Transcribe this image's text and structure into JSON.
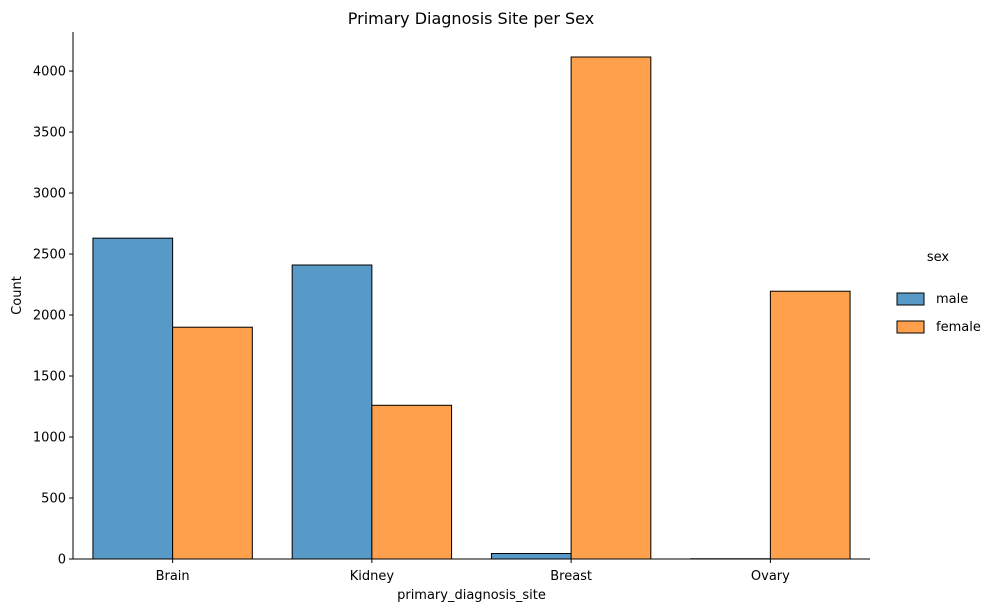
{
  "chart_data": {
    "type": "bar",
    "title": "Primary Diagnosis Site per Sex",
    "xlabel": "primary_diagnosis_site",
    "ylabel": "Count",
    "categories": [
      "Brain",
      "Kidney",
      "Breast",
      "Ovary"
    ],
    "series": [
      {
        "name": "male",
        "values": [
          2630,
          2410,
          45,
          2
        ],
        "color": "#5799c7"
      },
      {
        "name": "female",
        "values": [
          1900,
          1260,
          4115,
          2195
        ],
        "color": "#ffa04d"
      }
    ],
    "ylim": [
      0,
      4320
    ],
    "yticks": [
      0,
      500,
      1000,
      1500,
      2000,
      2500,
      3000,
      3500,
      4000
    ],
    "grid": false,
    "legend": {
      "title": "sex",
      "placement": "right"
    }
  }
}
